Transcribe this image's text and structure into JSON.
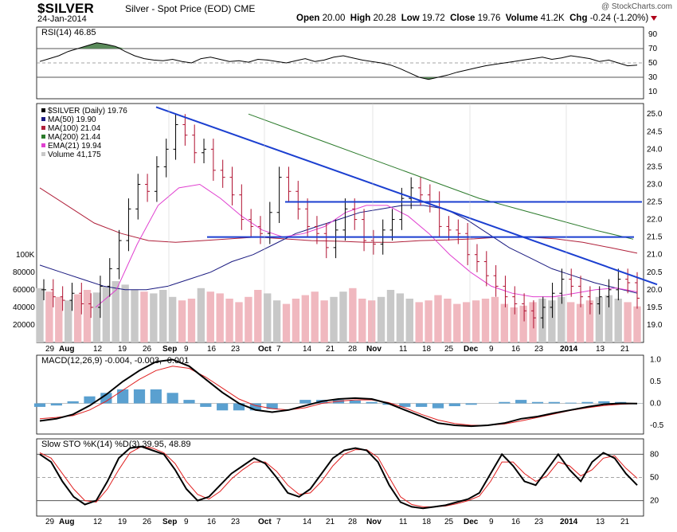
{
  "header": {
    "symbol": "$SILVER",
    "description": "Silver - Spot Price (EOD)",
    "exchange": "CME",
    "date": "24-Jan-2014",
    "watermark": "@ StockCharts.com",
    "open_label": "Open",
    "open": "20.00",
    "high_label": "High",
    "high": "20.28",
    "low_label": "Low",
    "low": "19.72",
    "close_label": "Close",
    "close": "19.76",
    "volume_label": "Volume",
    "volume": "41.2K",
    "chg_label": "Chg",
    "chg": "-0.24 (-1.20%)"
  },
  "colors": {
    "ma50": "#1a1a80",
    "ma100": "#b0203a",
    "ma200": "#2a7a2a",
    "ema21": "#e040d0",
    "trend": "#1b3fd0",
    "vol_up": "#c8c8c8",
    "vol_down": "#f0b8bf",
    "macd_hist": "#5aa0d0",
    "signal": "#e02020",
    "rsi_fill": "#5a8a5a"
  },
  "chart_data": [
    {
      "type": "line",
      "panel": "rsi",
      "title": "RSI(14) 46.85",
      "ylim": [
        0,
        100
      ],
      "yticks": [
        10,
        30,
        50,
        70,
        90
      ],
      "reference_lines": [
        30,
        50,
        70
      ],
      "series": [
        {
          "name": "RSI(14)",
          "values": [
            52,
            56,
            60,
            66,
            70,
            74,
            78,
            76,
            73,
            66,
            60,
            56,
            54,
            53,
            55,
            52,
            50,
            56,
            58,
            55,
            52,
            53,
            51,
            55,
            54,
            52,
            50,
            53,
            56,
            52,
            54,
            58,
            60,
            57,
            54,
            52,
            50,
            47,
            42,
            36,
            30,
            27,
            30,
            33,
            37,
            40,
            43,
            46,
            48,
            50,
            52,
            54,
            56,
            58,
            55,
            57,
            60,
            58,
            56,
            52,
            54,
            50,
            46,
            47
          ]
        }
      ]
    },
    {
      "type": "line",
      "panel": "price",
      "title": "$SILVER (Daily) 19.76",
      "ylim": [
        18.5,
        25.3
      ],
      "yticks": [
        19.0,
        19.5,
        20.0,
        20.5,
        21.0,
        21.5,
        22.0,
        22.5,
        23.0,
        23.5,
        24.0,
        24.5,
        25.0
      ],
      "xlabels": [
        "29",
        "Aug",
        "12",
        "19",
        "26",
        "Sep",
        "9",
        "16",
        "23",
        "Oct",
        "7",
        "14",
        "21",
        "28",
        "Nov",
        "11",
        "18",
        "25",
        "Dec",
        "9",
        "16",
        "23",
        "2014",
        "13",
        "21"
      ],
      "legend": [
        "$SILVER (Daily) 19.76",
        "MA(50) 19.90",
        "MA(100) 21.04",
        "MA(200) 21.44",
        "EMA(21) 19.94",
        "Volume 41,175"
      ],
      "series": [
        {
          "name": "$SILVER (Daily)",
          "values": [
            20.0,
            19.8,
            19.7,
            19.9,
            19.6,
            19.5,
            20.1,
            20.6,
            21.4,
            22.3,
            23.0,
            22.8,
            23.5,
            24.0,
            24.7,
            24.4,
            23.9,
            24.0,
            23.4,
            23.2,
            22.7,
            22.0,
            21.8,
            21.6,
            22.2,
            23.2,
            22.8,
            22.3,
            21.8,
            21.6,
            21.2,
            21.7,
            22.3,
            22.0,
            21.4,
            21.3,
            21.7,
            22.0,
            22.6,
            22.9,
            22.7,
            22.5,
            21.8,
            21.7,
            21.6,
            21.0,
            20.8,
            20.4,
            20.1,
            19.8,
            19.6,
            19.4,
            19.2,
            19.5,
            19.9,
            20.3,
            20.1,
            19.8,
            19.6,
            19.8,
            20.0,
            20.3,
            20.2,
            19.76
          ]
        },
        {
          "name": "MA(50)",
          "values": [
            20.7,
            20.5,
            20.3,
            20.1,
            20.0,
            20.0,
            20.1,
            20.3,
            20.5,
            20.8,
            21.0,
            21.3,
            21.6,
            21.8,
            22.0,
            22.2,
            22.3,
            22.4,
            22.4,
            22.3,
            22.0,
            21.6,
            21.2,
            20.9,
            20.6,
            20.4,
            20.2,
            20.05,
            19.9
          ]
        },
        {
          "name": "MA(100)",
          "values": [
            22.9,
            22.4,
            21.9,
            21.6,
            21.4,
            21.35,
            21.4,
            21.45,
            21.5,
            21.45,
            21.4,
            21.38,
            21.35,
            21.35,
            21.4,
            21.42,
            21.45,
            21.5,
            21.5,
            21.45,
            21.35,
            21.2,
            21.04
          ]
        },
        {
          "name": "MA(200)",
          "values": [
            25.0,
            24.6,
            24.2,
            23.8,
            23.4,
            23.0,
            22.6,
            22.3,
            22.0,
            21.7,
            21.44
          ]
        },
        {
          "name": "EMA(21)",
          "values": [
            19.5,
            20.0,
            21.3,
            22.4,
            22.9,
            23.0,
            22.6,
            22.1,
            21.7,
            21.5,
            21.6,
            21.8,
            22.2,
            22.4,
            22.4,
            22.1,
            21.6,
            21.0,
            20.5,
            20.1,
            19.9,
            19.8,
            19.8,
            19.9,
            20.0,
            20.05,
            19.94
          ]
        },
        {
          "name": "Volume",
          "values": [
            62000,
            58000,
            52000,
            48000,
            55000,
            60000,
            57000,
            64000,
            70000,
            66000,
            60000,
            58000,
            56000,
            60000,
            52000,
            48000,
            50000,
            62000,
            58000,
            56000,
            50000,
            46000,
            52000,
            60000,
            56000,
            48000,
            44000,
            50000,
            54000,
            58000,
            48000,
            52000,
            58000,
            62000,
            50000,
            48000,
            52000,
            60000,
            56000,
            50000,
            46000,
            48000,
            54000,
            50000,
            44000,
            46000,
            48000,
            50000,
            52000,
            44000,
            40000,
            42000,
            46000,
            50000,
            48000,
            52000,
            46000,
            44000,
            48000,
            52000,
            54000,
            50000,
            46000,
            41175
          ]
        }
      ],
      "volume_axis": {
        "label": "100K",
        "ticks": [
          20000,
          40000,
          60000,
          80000
        ]
      }
    },
    {
      "type": "line",
      "panel": "macd",
      "title": "MACD(12,26,9) -0.004, -0.003, -0.001",
      "ylim": [
        -0.7,
        1.1
      ],
      "yticks": [
        -0.5,
        0.0,
        0.5,
        1.0
      ],
      "series": [
        {
          "name": "MACD",
          "values": [
            -0.4,
            -0.35,
            -0.25,
            -0.05,
            0.2,
            0.5,
            0.75,
            0.95,
            1.0,
            0.85,
            0.55,
            0.25,
            0.0,
            -0.15,
            -0.2,
            -0.15,
            -0.05,
            0.05,
            0.1,
            0.12,
            0.1,
            0.0,
            -0.15,
            -0.3,
            -0.45,
            -0.5,
            -0.52,
            -0.5,
            -0.45,
            -0.35,
            -0.3,
            -0.22,
            -0.15,
            -0.08,
            -0.02,
            0.0,
            -0.004
          ]
        },
        {
          "name": "Signal",
          "values": [
            -0.35,
            -0.32,
            -0.28,
            -0.15,
            0.05,
            0.3,
            0.55,
            0.75,
            0.85,
            0.8,
            0.6,
            0.35,
            0.1,
            -0.05,
            -0.12,
            -0.15,
            -0.1,
            0.0,
            0.05,
            0.08,
            0.08,
            0.02,
            -0.1,
            -0.25,
            -0.38,
            -0.46,
            -0.5,
            -0.5,
            -0.47,
            -0.4,
            -0.32,
            -0.24,
            -0.16,
            -0.1,
            -0.05,
            -0.02,
            -0.003
          ]
        }
      ]
    },
    {
      "type": "line",
      "panel": "sto",
      "title": "Slow STO %K(14) %D(3) 39.95, 48.89",
      "ylim": [
        0,
        100
      ],
      "yticks": [
        20,
        50,
        80
      ],
      "series": [
        {
          "name": "%K",
          "values": [
            80,
            70,
            45,
            25,
            15,
            20,
            45,
            75,
            88,
            90,
            85,
            80,
            60,
            35,
            20,
            25,
            40,
            55,
            65,
            75,
            68,
            50,
            30,
            25,
            35,
            55,
            75,
            85,
            88,
            85,
            70,
            40,
            18,
            12,
            10,
            12,
            14,
            18,
            22,
            30,
            55,
            80,
            65,
            45,
            40,
            60,
            80,
            60,
            45,
            70,
            82,
            75,
            55,
            40
          ]
        },
        {
          "name": "%D",
          "values": [
            82,
            75,
            55,
            35,
            20,
            18,
            35,
            60,
            82,
            90,
            88,
            82,
            68,
            45,
            28,
            22,
            32,
            48,
            60,
            70,
            70,
            58,
            40,
            28,
            30,
            45,
            65,
            80,
            86,
            86,
            76,
            50,
            25,
            15,
            12,
            12,
            13,
            16,
            20,
            26,
            45,
            70,
            70,
            55,
            45,
            52,
            70,
            65,
            52,
            60,
            75,
            78,
            62,
            49
          ]
        }
      ]
    }
  ]
}
